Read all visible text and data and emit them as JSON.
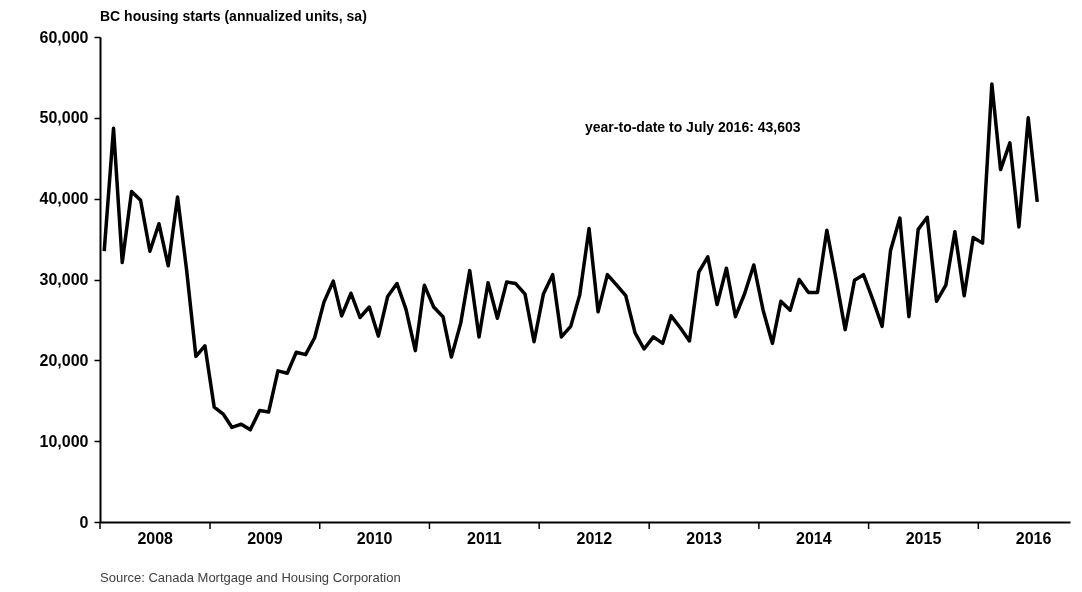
{
  "chart_data": {
    "type": "line",
    "title": "BC housing starts (annualized units, sa)",
    "x": [
      "2008-01-15",
      "2008-02-15",
      "2008-03-15",
      "2008-04-15",
      "2008-05-15",
      "2008-06-15",
      "2008-07-15",
      "2008-08-15",
      "2008-09-15",
      "2008-10-15",
      "2008-11-15",
      "2008-12-15",
      "2009-01-15",
      "2009-02-15",
      "2009-03-15",
      "2009-04-15",
      "2009-05-15",
      "2009-06-15",
      "2009-07-15",
      "2009-08-15",
      "2009-09-15",
      "2009-10-15",
      "2009-11-15",
      "2009-12-15",
      "2010-01-15",
      "2010-02-15",
      "2010-03-15",
      "2010-04-15",
      "2010-05-15",
      "2010-06-15",
      "2010-07-15",
      "2010-08-15",
      "2010-09-15",
      "2010-10-15",
      "2010-11-15",
      "2010-12-15",
      "2011-01-15",
      "2011-02-15",
      "2011-03-15",
      "2011-04-15",
      "2011-05-15",
      "2011-06-15",
      "2011-07-15",
      "2011-08-15",
      "2011-09-15",
      "2011-10-15",
      "2011-11-15",
      "2011-12-15",
      "2012-01-15",
      "2012-02-15",
      "2012-03-15",
      "2012-04-15",
      "2012-05-15",
      "2012-06-15",
      "2012-07-15",
      "2012-08-15",
      "2012-09-15",
      "2012-10-15",
      "2012-11-15",
      "2012-12-15",
      "2013-01-15",
      "2013-02-15",
      "2013-03-15",
      "2013-04-15",
      "2013-05-15",
      "2013-06-15",
      "2013-07-15",
      "2013-08-15",
      "2013-09-15",
      "2013-10-15",
      "2013-11-15",
      "2013-12-15",
      "2014-01-15",
      "2014-02-15",
      "2014-03-15",
      "2014-04-15",
      "2014-05-15",
      "2014-06-15",
      "2014-07-15",
      "2014-08-15",
      "2014-09-15",
      "2014-10-15",
      "2014-11-15",
      "2014-12-15",
      "2015-01-15",
      "2015-02-15",
      "2015-03-15",
      "2015-04-15",
      "2015-05-15",
      "2015-06-15",
      "2015-07-15",
      "2015-08-15",
      "2015-09-15",
      "2015-10-15",
      "2015-11-15",
      "2015-12-15",
      "2016-01-15",
      "2016-02-15",
      "2016-03-15",
      "2016-04-15",
      "2016-05-15",
      "2016-06-15",
      "2016-07-15"
    ],
    "series": [
      {
        "color": "#000000",
        "values": [
          33500,
          48700,
          32100,
          40900,
          39800,
          33500,
          36900,
          31700,
          40200,
          31200,
          20500,
          21800,
          14200,
          13300,
          11700,
          12100,
          11400,
          13800,
          13600,
          18700,
          18400,
          21000,
          20700,
          22800,
          27200,
          29800,
          25500,
          28300,
          25300,
          26600,
          23000,
          27900,
          29500,
          26300,
          21200,
          29300,
          26600,
          25400,
          20400,
          24600,
          31100,
          22900,
          29600,
          25200,
          29700,
          29500,
          28200,
          22300,
          28200,
          30600,
          22900,
          24200,
          28100,
          36300,
          26000,
          30600,
          29300,
          28000,
          23400,
          21400,
          22900,
          22100,
          25500,
          24000,
          22400,
          30900,
          32800,
          26900,
          31400,
          25400,
          28300,
          31800,
          26200,
          22100,
          27300,
          26200,
          30000,
          28400,
          28400,
          36100,
          30000,
          23800,
          29900,
          30600,
          27500,
          24200,
          33600,
          37600,
          25400,
          36200,
          37700,
          27300,
          29300,
          35900,
          28000,
          35200,
          34500,
          54200,
          43600,
          46900,
          36500,
          50000,
          39600
        ]
      }
    ],
    "xlim": [
      "2008-01-01",
      "2016-11-01"
    ],
    "xticks": [
      {
        "value": "2008-01-01",
        "label": null
      },
      {
        "value": "2008-07-01",
        "label": "2008"
      },
      {
        "value": "2009-01-01",
        "label": null
      },
      {
        "value": "2009-07-01",
        "label": "2009"
      },
      {
        "value": "2010-01-01",
        "label": null
      },
      {
        "value": "2010-07-01",
        "label": "2010"
      },
      {
        "value": "2011-01-01",
        "label": null
      },
      {
        "value": "2011-07-01",
        "label": "2011"
      },
      {
        "value": "2012-01-01",
        "label": null
      },
      {
        "value": "2012-07-01",
        "label": "2012"
      },
      {
        "value": "2013-01-01",
        "label": null
      },
      {
        "value": "2013-07-01",
        "label": "2013"
      },
      {
        "value": "2014-01-01",
        "label": null
      },
      {
        "value": "2014-07-01",
        "label": "2014"
      },
      {
        "value": "2015-01-01",
        "label": null
      },
      {
        "value": "2015-07-01",
        "label": "2015"
      },
      {
        "value": "2016-01-01",
        "label": null
      },
      {
        "value": "2016-07-01",
        "label": "2016"
      }
    ],
    "ylim": [
      0,
      60000
    ],
    "yticks": [
      0,
      {
        "value": 10000,
        "label": "10,000"
      },
      {
        "value": 20000,
        "label": "20,000"
      },
      {
        "value": 30000,
        "label": "30,000"
      },
      {
        "value": 40000,
        "label": "40,000"
      },
      {
        "value": 50000,
        "label": "50,000"
      },
      {
        "value": 60000,
        "label": "60,000"
      }
    ],
    "annotations": [
      "year-to-date to July 2016: 43,603",
      "Source: Canada Mortgage and Housing Corporation"
    ],
    "grid": false,
    "marker": "none",
    "line_style": "solid"
  }
}
